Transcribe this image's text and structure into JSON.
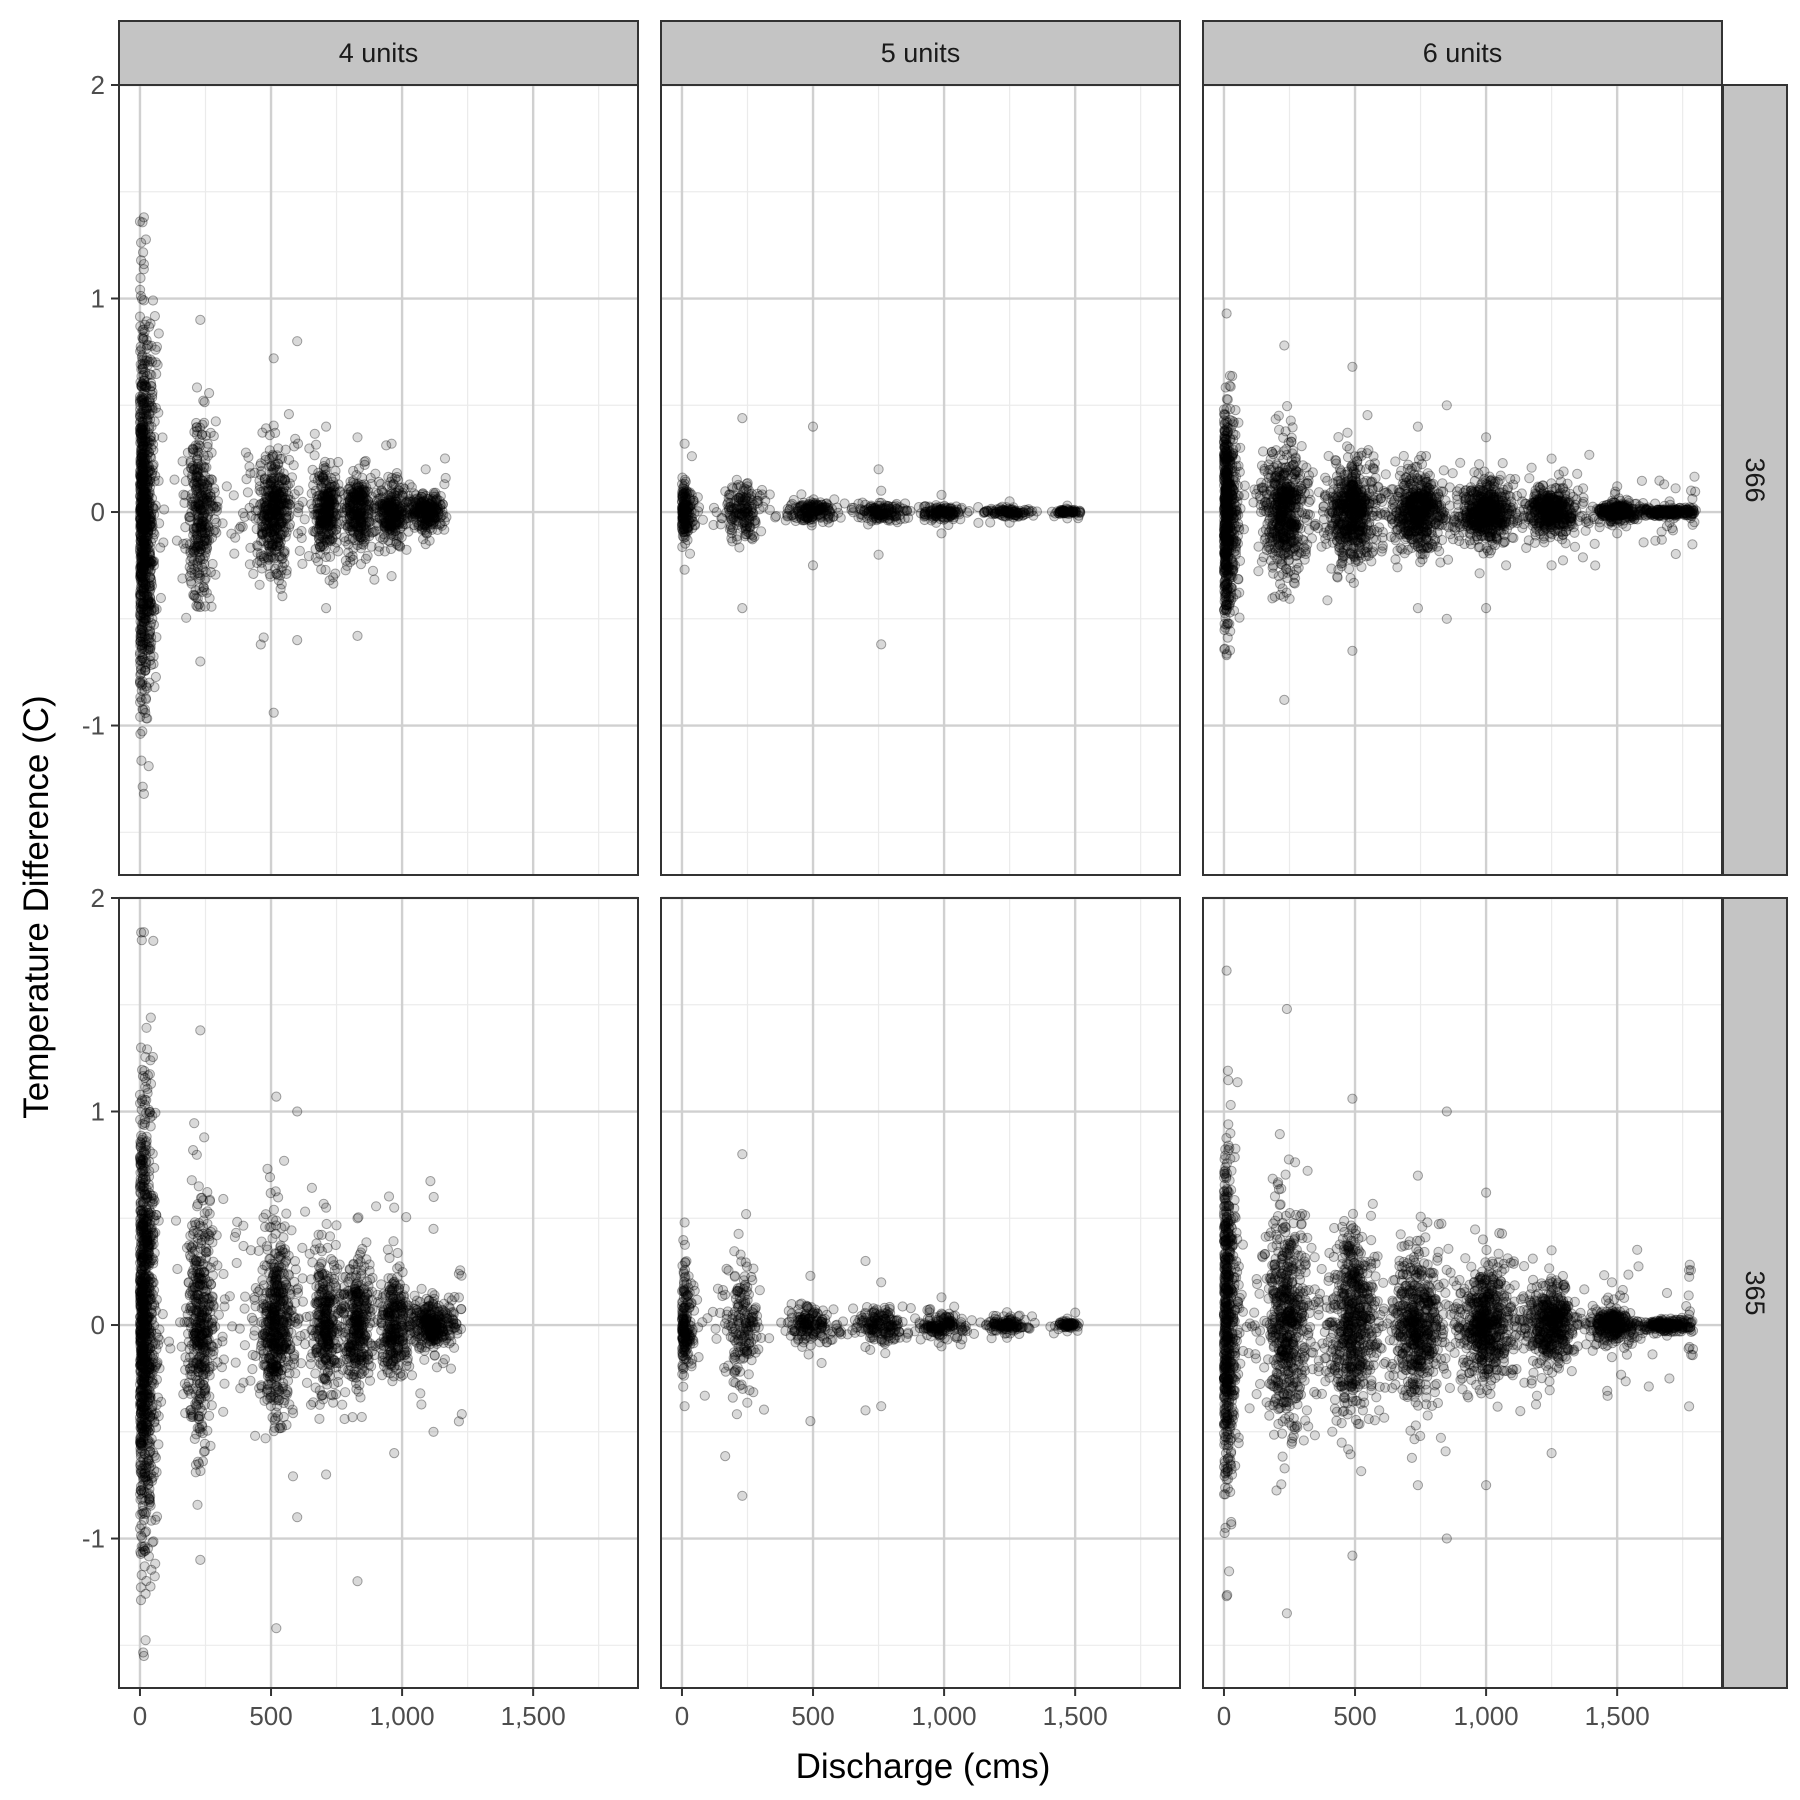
{
  "chart_data": {
    "type": "scatter",
    "title": "",
    "xlabel": "Discharge (cms)",
    "ylabel": "Temperature Difference (C)",
    "xlim": [
      -80,
      1900
    ],
    "ylim": [
      -1.7,
      2.0
    ],
    "x_ticks": [
      {
        "value": 0,
        "label": "0"
      },
      {
        "value": 500,
        "label": "500"
      },
      {
        "value": 1000,
        "label": "1,000"
      },
      {
        "value": 1500,
        "label": "1,500"
      }
    ],
    "y_ticks": [
      {
        "value": 2,
        "label": "2"
      },
      {
        "value": 1,
        "label": "1"
      },
      {
        "value": 0,
        "label": "0"
      },
      {
        "value": -1,
        "label": "-1"
      }
    ],
    "grid": true,
    "facet_cols": [
      "4 units",
      "5 units",
      "6 units"
    ],
    "facet_rows": [
      "366",
      "365"
    ],
    "point_style": {
      "color": "#000000",
      "fill_opacity": 0.15,
      "stroke_opacity": 0.35
    },
    "panels": [
      {
        "col": "4 units",
        "row": "366",
        "x_max": 1170,
        "clusters": [
          {
            "x": 15,
            "x_spread": 22,
            "y_spread": 0.45,
            "ymin": -1.32,
            "ymax": 1.38,
            "n": 900
          },
          {
            "x": 230,
            "x_spread": 25,
            "y_spread": 0.2,
            "ymin": -0.7,
            "ymax": 0.9,
            "n": 320
          },
          {
            "x": 510,
            "x_spread": 30,
            "y_spread": 0.15,
            "ymin": -0.94,
            "ymax": 0.72,
            "n": 380
          },
          {
            "x": 710,
            "x_spread": 25,
            "y_spread": 0.1,
            "ymin": -0.45,
            "ymax": 0.4,
            "n": 260
          },
          {
            "x": 830,
            "x_spread": 25,
            "y_spread": 0.09,
            "ymin": -0.58,
            "ymax": 0.35,
            "n": 240
          },
          {
            "x": 960,
            "x_spread": 30,
            "y_spread": 0.07,
            "ymin": -0.3,
            "ymax": 0.32,
            "n": 240
          },
          {
            "x": 1090,
            "x_spread": 35,
            "y_spread": 0.04,
            "ymin": -0.15,
            "ymax": 0.2,
            "n": 240
          },
          {
            "x": 600,
            "x_spread": 300,
            "y_spread": 0.15,
            "ymin": -0.6,
            "ymax": 0.8,
            "n": 160
          }
        ]
      },
      {
        "col": "5 units",
        "row": "366",
        "x_max": 1520,
        "clusters": [
          {
            "x": 10,
            "x_spread": 20,
            "y_spread": 0.07,
            "ymin": -0.27,
            "ymax": 0.32,
            "n": 160
          },
          {
            "x": 230,
            "x_spread": 35,
            "y_spread": 0.06,
            "ymin": -0.45,
            "ymax": 0.44,
            "n": 160
          },
          {
            "x": 500,
            "x_spread": 40,
            "y_spread": 0.025,
            "ymin": -0.25,
            "ymax": 0.4,
            "n": 140
          },
          {
            "x": 760,
            "x_spread": 40,
            "y_spread": 0.02,
            "ymin": -0.62,
            "ymax": 0.1,
            "n": 120
          },
          {
            "x": 990,
            "x_spread": 40,
            "y_spread": 0.018,
            "ymin": -0.1,
            "ymax": 0.08,
            "n": 120
          },
          {
            "x": 1250,
            "x_spread": 40,
            "y_spread": 0.01,
            "ymin": -0.05,
            "ymax": 0.05,
            "n": 100
          },
          {
            "x": 1470,
            "x_spread": 25,
            "y_spread": 0.006,
            "ymin": -0.03,
            "ymax": 0.03,
            "n": 60
          },
          {
            "x": 750,
            "x_spread": 400,
            "y_spread": 0.03,
            "ymin": -0.2,
            "ymax": 0.2,
            "n": 80
          }
        ]
      },
      {
        "col": "6 units",
        "row": "366",
        "x_max": 1800,
        "clusters": [
          {
            "x": 10,
            "x_spread": 20,
            "y_spread": 0.25,
            "ymin": -0.67,
            "ymax": 0.93,
            "n": 600
          },
          {
            "x": 230,
            "x_spread": 40,
            "y_spread": 0.15,
            "ymin": -0.88,
            "ymax": 0.78,
            "n": 520
          },
          {
            "x": 490,
            "x_spread": 45,
            "y_spread": 0.12,
            "ymin": -0.65,
            "ymax": 0.68,
            "n": 520
          },
          {
            "x": 740,
            "x_spread": 45,
            "y_spread": 0.09,
            "ymin": -0.45,
            "ymax": 0.4,
            "n": 480
          },
          {
            "x": 1000,
            "x_spread": 45,
            "y_spread": 0.07,
            "ymin": -0.45,
            "ymax": 0.35,
            "n": 480
          },
          {
            "x": 1250,
            "x_spread": 45,
            "y_spread": 0.05,
            "ymin": -0.25,
            "ymax": 0.25,
            "n": 400
          },
          {
            "x": 1500,
            "x_spread": 40,
            "y_spread": 0.02,
            "ymin": -0.1,
            "ymax": 0.12,
            "n": 260
          },
          {
            "x": 1700,
            "x_spread": 60,
            "y_spread": 0.01,
            "ymin": -0.05,
            "ymax": 0.05,
            "n": 200
          },
          {
            "x": 850,
            "x_spread": 450,
            "y_spread": 0.1,
            "ymin": -0.5,
            "ymax": 0.5,
            "n": 300
          }
        ]
      },
      {
        "col": "4 units",
        "row": "365",
        "x_max": 1230,
        "clusters": [
          {
            "x": 15,
            "x_spread": 22,
            "y_spread": 0.5,
            "ymin": -1.55,
            "ymax": 1.84,
            "n": 1000
          },
          {
            "x": 230,
            "x_spread": 25,
            "y_spread": 0.28,
            "ymin": -1.1,
            "ymax": 1.38,
            "n": 420
          },
          {
            "x": 520,
            "x_spread": 30,
            "y_spread": 0.22,
            "ymin": -1.42,
            "ymax": 1.07,
            "n": 480
          },
          {
            "x": 710,
            "x_spread": 25,
            "y_spread": 0.15,
            "ymin": -0.7,
            "ymax": 0.55,
            "n": 300
          },
          {
            "x": 830,
            "x_spread": 25,
            "y_spread": 0.14,
            "ymin": -1.2,
            "ymax": 0.5,
            "n": 300
          },
          {
            "x": 970,
            "x_spread": 30,
            "y_spread": 0.12,
            "ymin": -0.6,
            "ymax": 0.55,
            "n": 280
          },
          {
            "x": 1120,
            "x_spread": 40,
            "y_spread": 0.06,
            "ymin": -0.5,
            "ymax": 0.45,
            "n": 300
          },
          {
            "x": 600,
            "x_spread": 300,
            "y_spread": 0.25,
            "ymin": -0.9,
            "ymax": 1.0,
            "n": 200
          }
        ]
      },
      {
        "col": "5 units",
        "row": "365",
        "x_max": 1520,
        "clusters": [
          {
            "x": 10,
            "x_spread": 20,
            "y_spread": 0.12,
            "ymin": -0.38,
            "ymax": 0.48,
            "n": 180
          },
          {
            "x": 230,
            "x_spread": 35,
            "y_spread": 0.15,
            "ymin": -0.8,
            "ymax": 0.8,
            "n": 180
          },
          {
            "x": 490,
            "x_spread": 40,
            "y_spread": 0.05,
            "ymin": -0.45,
            "ymax": 0.23,
            "n": 150
          },
          {
            "x": 760,
            "x_spread": 40,
            "y_spread": 0.04,
            "ymin": -0.38,
            "ymax": 0.2,
            "n": 140
          },
          {
            "x": 990,
            "x_spread": 40,
            "y_spread": 0.03,
            "ymin": -0.1,
            "ymax": 0.13,
            "n": 130
          },
          {
            "x": 1240,
            "x_spread": 40,
            "y_spread": 0.02,
            "ymin": -0.06,
            "ymax": 0.06,
            "n": 110
          },
          {
            "x": 1470,
            "x_spread": 25,
            "y_spread": 0.008,
            "ymin": -0.03,
            "ymax": 0.03,
            "n": 60
          },
          {
            "x": 700,
            "x_spread": 400,
            "y_spread": 0.05,
            "ymin": -0.4,
            "ymax": 0.3,
            "n": 90
          }
        ]
      },
      {
        "col": "6 units",
        "row": "365",
        "x_max": 1790,
        "clusters": [
          {
            "x": 10,
            "x_spread": 20,
            "y_spread": 0.38,
            "ymin": -1.27,
            "ymax": 1.66,
            "n": 600
          },
          {
            "x": 240,
            "x_spread": 40,
            "y_spread": 0.25,
            "ymin": -1.35,
            "ymax": 1.48,
            "n": 560
          },
          {
            "x": 490,
            "x_spread": 45,
            "y_spread": 0.22,
            "ymin": -1.08,
            "ymax": 1.06,
            "n": 560
          },
          {
            "x": 740,
            "x_spread": 45,
            "y_spread": 0.17,
            "ymin": -0.75,
            "ymax": 0.7,
            "n": 500
          },
          {
            "x": 1000,
            "x_spread": 45,
            "y_spread": 0.13,
            "ymin": -0.75,
            "ymax": 0.62,
            "n": 500
          },
          {
            "x": 1250,
            "x_spread": 45,
            "y_spread": 0.09,
            "ymin": -0.6,
            "ymax": 0.35,
            "n": 420
          },
          {
            "x": 1480,
            "x_spread": 40,
            "y_spread": 0.04,
            "ymin": -0.15,
            "ymax": 0.2,
            "n": 260
          },
          {
            "x": 1690,
            "x_spread": 60,
            "y_spread": 0.015,
            "ymin": -0.05,
            "ymax": 0.15,
            "n": 200
          },
          {
            "x": 850,
            "x_spread": 450,
            "y_spread": 0.18,
            "ymin": -1.0,
            "ymax": 1.0,
            "n": 320
          }
        ]
      }
    ]
  }
}
